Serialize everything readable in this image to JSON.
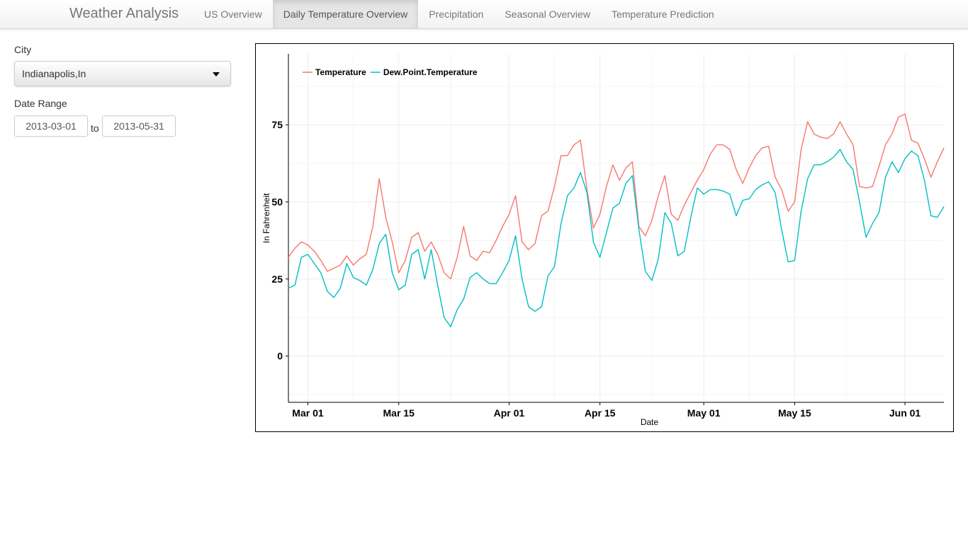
{
  "app": {
    "brand": "Weather Analysis"
  },
  "nav": {
    "tabs": [
      {
        "label": "US Overview",
        "active": false
      },
      {
        "label": "Daily Temperature Overview",
        "active": true
      },
      {
        "label": "Precipitation",
        "active": false
      },
      {
        "label": "Seasonal Overview",
        "active": false
      },
      {
        "label": "Temperature Prediction",
        "active": false
      }
    ]
  },
  "sidebar": {
    "city_label": "City",
    "city_value": "Indianapolis,In",
    "date_label": "Date Range",
    "date_start": "2013-03-01",
    "date_sep": "to",
    "date_end": "2013-05-31"
  },
  "colors": {
    "temperature": "#F8766D",
    "dew_point": "#00BFC4"
  },
  "chart_data": {
    "type": "line",
    "xlabel": "Date",
    "ylabel": "In Fahrenheit",
    "x_start": "2013-02-26",
    "x_ticks": [
      "Mar 01",
      "Mar 15",
      "Apr 01",
      "Apr 15",
      "May 01",
      "May 15",
      "Jun 01"
    ],
    "y_ticks": [
      0,
      25,
      50,
      75
    ],
    "ylim": [
      -15,
      98
    ],
    "legend_position": "top-left",
    "grid": true,
    "series": [
      {
        "name": "Temperature",
        "color": "#F8766D",
        "values": [
          32,
          35,
          37,
          36,
          34,
          31,
          27.5,
          28.5,
          29.5,
          32.5,
          29.5,
          31.5,
          33,
          42,
          57.5,
          45,
          37,
          27,
          31,
          38.5,
          40,
          34,
          37,
          33,
          27,
          25,
          32,
          42,
          32.5,
          31,
          34,
          33.5,
          37.5,
          42,
          46,
          52,
          37,
          34.5,
          36.5,
          45.5,
          47,
          55,
          65,
          65,
          68.5,
          70,
          54,
          41.5,
          46,
          55,
          62,
          57,
          61,
          63,
          42,
          39,
          44,
          52,
          58.5,
          46,
          44,
          49,
          53,
          57,
          60.5,
          65.5,
          68.5,
          68.5,
          67,
          60.5,
          56,
          61,
          65,
          67.5,
          68,
          58,
          54,
          47,
          50,
          67,
          76,
          72,
          71,
          70.5,
          72,
          76,
          72,
          68.5,
          55,
          54.5,
          55,
          61.5,
          68.5,
          72,
          77.5,
          78.5,
          70,
          69,
          64,
          58,
          63,
          67.5
        ]
      },
      {
        "name": "Dew.Point.Temperature",
        "color": "#00BFC4",
        "values": [
          22,
          23,
          32,
          33,
          30,
          27,
          21,
          19,
          22,
          30,
          25.5,
          24.5,
          23,
          28,
          36.5,
          39.5,
          27,
          21.5,
          23,
          33,
          34.5,
          25,
          34.5,
          23,
          12.5,
          9.5,
          15,
          18.5,
          25.5,
          27,
          25,
          23.5,
          23.5,
          27,
          31,
          39,
          25,
          16,
          14.5,
          16,
          26,
          29,
          43,
          52,
          54.5,
          59.5,
          53,
          37,
          32,
          40,
          48,
          49.5,
          56,
          58.5,
          41,
          27.5,
          24.5,
          31.5,
          46.5,
          43,
          32.5,
          34,
          45,
          54.5,
          52.5,
          54,
          54,
          53.5,
          52.5,
          45.5,
          50.5,
          51,
          54,
          55.5,
          56.5,
          53,
          41,
          30.5,
          31,
          47,
          57.5,
          62,
          62,
          63,
          64.5,
          67,
          63,
          60.5,
          50,
          38.5,
          43,
          46.5,
          58,
          63,
          59.5,
          64,
          66.5,
          65,
          57,
          45.5,
          45,
          48.5
        ]
      }
    ]
  }
}
